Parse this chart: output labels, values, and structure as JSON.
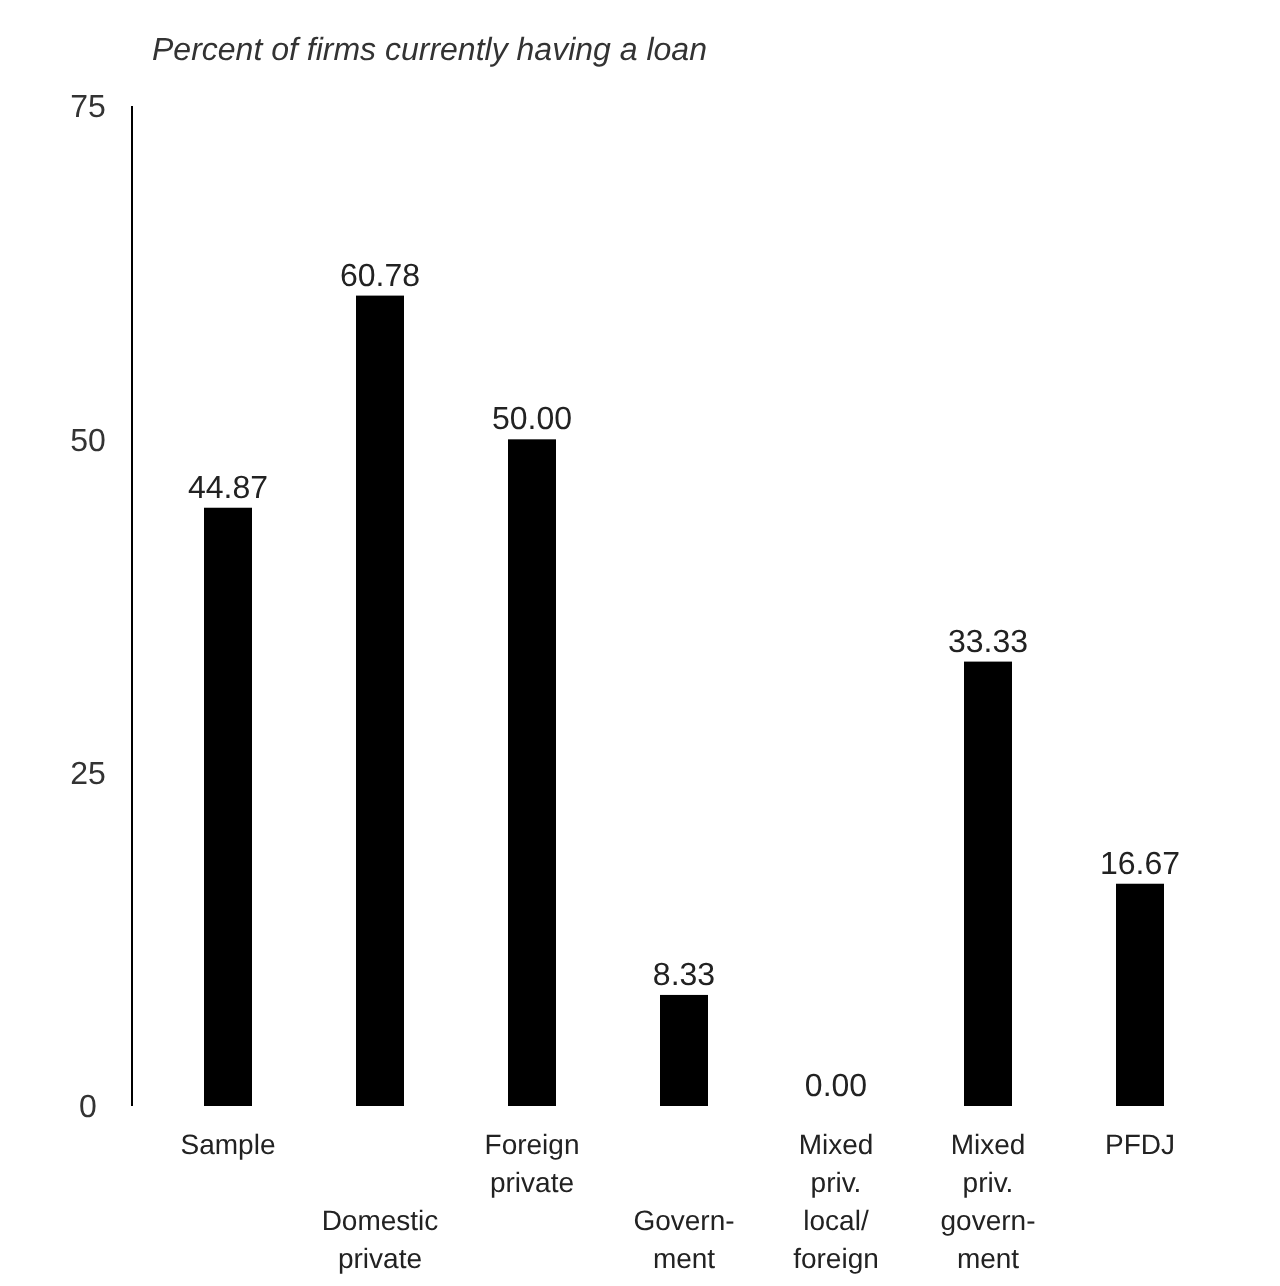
{
  "chart_data": {
    "type": "bar",
    "title": "Percent of firms currently having a loan",
    "categories": [
      "Sample",
      "Domestic\nprivate",
      "Foreign\nprivate",
      "Govern-\nment",
      "Mixed\npriv.\nlocal/\nforeign",
      "Mixed\npriv.\ngovern-\nment",
      "PFDJ"
    ],
    "values": [
      44.87,
      60.78,
      50.0,
      8.33,
      0.0,
      33.33,
      16.67
    ],
    "value_labels": [
      "44.87",
      "60.78",
      "50.00",
      "8.33",
      "0.00",
      "33.33",
      "16.67"
    ],
    "color": "#000000",
    "ylim": [
      0,
      75
    ],
    "yticks": [
      0,
      25,
      50,
      75
    ],
    "grid": false
  }
}
